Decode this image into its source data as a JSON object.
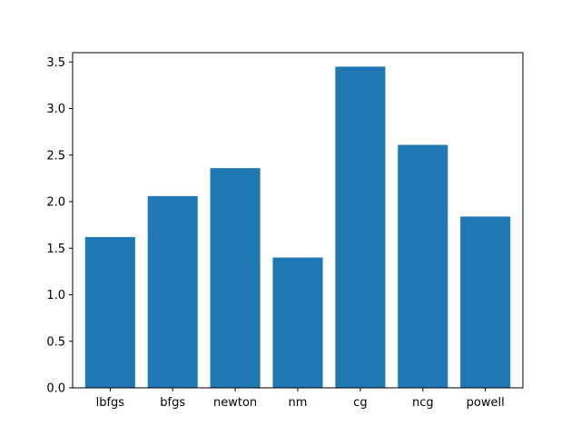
{
  "chart_data": {
    "type": "bar",
    "title": "",
    "xlabel": "",
    "ylabel": "",
    "categories": [
      "lbfgs",
      "bfgs",
      "newton",
      "nm",
      "cg",
      "ncg",
      "powell"
    ],
    "values": [
      1.62,
      2.06,
      2.36,
      1.4,
      3.45,
      2.61,
      1.84
    ],
    "ylim": [
      0,
      3.6
    ],
    "yticks": [
      "0.0",
      "0.5",
      "1.0",
      "1.5",
      "2.0",
      "2.5",
      "3.0",
      "3.5"
    ],
    "bar_color": "#1f77b4",
    "grid": false,
    "legend": "none"
  }
}
